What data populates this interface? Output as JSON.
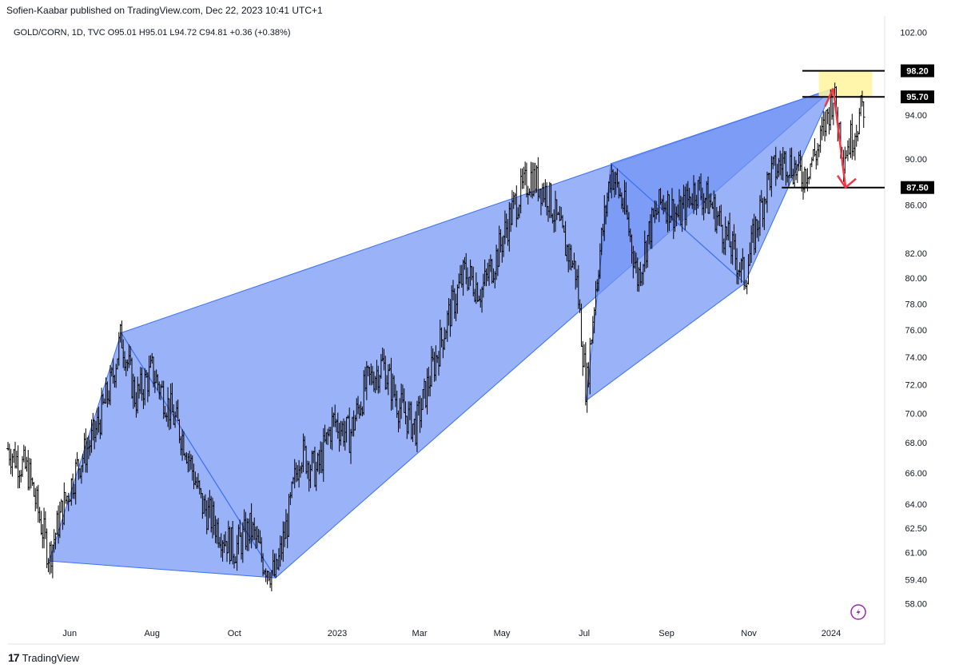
{
  "header": {
    "published": "Sofien-Kaabar published on TradingView.com, Dec 22, 2023 10:41 UTC+1"
  },
  "legend": {
    "text": "GOLD/CORN, 1D, TVC  O95.01  H95.01  L94.72  C94.81  +0.36 (+0.38%)"
  },
  "footer": {
    "logo": "17",
    "brand": "TradingView"
  },
  "colors": {
    "pattern": "#6f93f5",
    "pattern_dark": "#3b6ff5",
    "arrow": "#f23645",
    "target_box": "#fff59d",
    "candle": "#000000"
  },
  "chart_data": {
    "type": "bar",
    "symbol": "GOLD/CORN",
    "interval": "1D",
    "x_ticks": [
      {
        "label": "Jun",
        "t": 1.0
      },
      {
        "label": "Aug",
        "t": 3.0
      },
      {
        "label": "Oct",
        "t": 5.0
      },
      {
        "label": "2023",
        "t": 7.5
      },
      {
        "label": "Mar",
        "t": 9.5
      },
      {
        "label": "May",
        "t": 11.5
      },
      {
        "label": "Jul",
        "t": 13.5
      },
      {
        "label": "Sep",
        "t": 15.5
      },
      {
        "label": "Nov",
        "t": 17.5
      },
      {
        "label": "2024",
        "t": 19.5
      }
    ],
    "y_ticks": [
      "102.00",
      "94.00",
      "90.00",
      "86.00",
      "82.00",
      "80.00",
      "78.00",
      "76.00",
      "74.00",
      "72.00",
      "70.00",
      "68.00",
      "66.00",
      "64.00",
      "62.50",
      "61.00",
      "59.40",
      "58.00"
    ],
    "y_scale": "log",
    "y_range": [
      56.8,
      103.5
    ],
    "t_range": [
      -0.5,
      20.8
    ],
    "price_lines": [
      {
        "label": "98.20",
        "value": 98.2,
        "t_from": 18.8,
        "t_to": 20.8
      },
      {
        "label": "95.70",
        "value": 95.7,
        "t_from": 18.8,
        "t_to": 20.8
      },
      {
        "label": "87.50",
        "value": 87.5,
        "t_from": 18.3,
        "t_to": 20.8
      }
    ],
    "patterns": [
      {
        "name": "pattern-1",
        "points": [
          [
            0.5,
            60.5
          ],
          [
            2.25,
            75.8
          ],
          [
            6.0,
            59.5
          ],
          [
            19.55,
            96.5
          ]
        ]
      },
      {
        "name": "pattern-2",
        "points": [
          [
            13.55,
            70.9
          ],
          [
            14.15,
            89.6
          ],
          [
            17.4,
            79.6
          ],
          [
            19.55,
            96.5
          ]
        ]
      }
    ],
    "target_box": {
      "t_from": 19.2,
      "t_to": 20.5,
      "high": 98.2,
      "low": 95.7
    },
    "arrow": {
      "from": [
        19.55,
        96.5
      ],
      "to": [
        19.85,
        87.5
      ]
    },
    "price_path": [
      [
        -0.5,
        67.6
      ],
      [
        0.0,
        66.0
      ],
      [
        0.3,
        62.8
      ],
      [
        0.5,
        60.8
      ],
      [
        0.8,
        63.5
      ],
      [
        1.2,
        66.5
      ],
      [
        1.6,
        68.5
      ],
      [
        2.0,
        72.0
      ],
      [
        2.25,
        75.6
      ],
      [
        2.6,
        71.0
      ],
      [
        3.0,
        73.0
      ],
      [
        3.4,
        70.5
      ],
      [
        3.8,
        68.0
      ],
      [
        4.2,
        64.0
      ],
      [
        4.6,
        62.5
      ],
      [
        5.0,
        61.2
      ],
      [
        5.4,
        62.5
      ],
      [
        5.7,
        60.5
      ],
      [
        6.0,
        59.6
      ],
      [
        6.3,
        63.0
      ],
      [
        6.6,
        67.5
      ],
      [
        7.0,
        66.0
      ],
      [
        7.4,
        69.5
      ],
      [
        7.8,
        68.5
      ],
      [
        8.2,
        72.0
      ],
      [
        8.6,
        73.5
      ],
      [
        9.0,
        70.5
      ],
      [
        9.4,
        69.0
      ],
      [
        9.8,
        73.0
      ],
      [
        10.2,
        77.0
      ],
      [
        10.6,
        80.5
      ],
      [
        11.0,
        79.0
      ],
      [
        11.4,
        82.0
      ],
      [
        11.8,
        86.0
      ],
      [
        12.2,
        88.5
      ],
      [
        12.6,
        87.0
      ],
      [
        13.0,
        83.0
      ],
      [
        13.3,
        80.5
      ],
      [
        13.55,
        71.5
      ],
      [
        13.8,
        80.0
      ],
      [
        14.15,
        89.0
      ],
      [
        14.5,
        85.5
      ],
      [
        14.8,
        80.0
      ],
      [
        15.1,
        84.0
      ],
      [
        15.4,
        86.5
      ],
      [
        15.8,
        85.0
      ],
      [
        16.2,
        87.5
      ],
      [
        16.6,
        86.0
      ],
      [
        17.0,
        83.0
      ],
      [
        17.4,
        80.0
      ],
      [
        17.7,
        84.5
      ],
      [
        18.0,
        88.5
      ],
      [
        18.4,
        90.0
      ],
      [
        18.8,
        88.5
      ],
      [
        19.2,
        91.0
      ],
      [
        19.55,
        96.0
      ],
      [
        19.8,
        90.5
      ],
      [
        20.0,
        92.0
      ],
      [
        20.3,
        95.0
      ]
    ]
  }
}
